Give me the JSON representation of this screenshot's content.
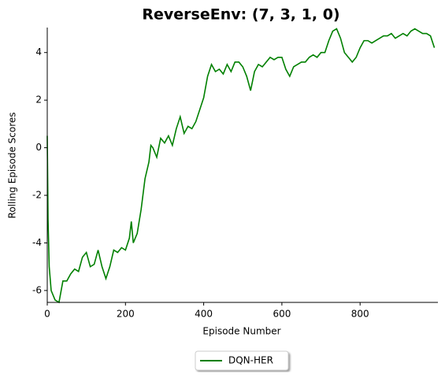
{
  "chart_data": {
    "type": "line",
    "title": "ReverseEnv: (7, 3, 1, 0)",
    "x_label": "Episode Number",
    "y_label": "Rolling Episode Scores",
    "x": [
      0,
      2,
      5,
      10,
      20,
      30,
      40,
      50,
      60,
      70,
      80,
      90,
      100,
      110,
      120,
      130,
      140,
      150,
      160,
      170,
      180,
      190,
      200,
      210,
      215,
      220,
      230,
      240,
      250,
      260,
      265,
      270,
      280,
      290,
      300,
      310,
      320,
      330,
      340,
      350,
      360,
      370,
      380,
      390,
      400,
      410,
      420,
      430,
      440,
      450,
      460,
      470,
      480,
      490,
      500,
      510,
      520,
      530,
      540,
      550,
      560,
      570,
      580,
      590,
      600,
      610,
      620,
      630,
      640,
      650,
      660,
      670,
      680,
      690,
      700,
      710,
      720,
      730,
      740,
      750,
      760,
      770,
      780,
      790,
      800,
      810,
      820,
      830,
      840,
      850,
      860,
      870,
      880,
      890,
      900,
      910,
      920,
      930,
      940,
      950,
      960,
      970,
      980,
      990
    ],
    "series": [
      {
        "name": "DQN-HER",
        "color": "#008000",
        "values": [
          0.5,
          -3,
          -5,
          -6,
          -6.4,
          -6.5,
          -5.6,
          -5.6,
          -5.3,
          -5.1,
          -5.2,
          -4.6,
          -4.4,
          -5.0,
          -4.9,
          -4.3,
          -5.0,
          -5.5,
          -5.0,
          -4.3,
          -4.4,
          -4.2,
          -4.3,
          -3.8,
          -3.1,
          -4.0,
          -3.6,
          -2.6,
          -1.3,
          -0.6,
          0.1,
          0.0,
          -0.4,
          0.4,
          0.2,
          0.5,
          0.1,
          0.8,
          1.3,
          0.6,
          0.9,
          0.8,
          1.1,
          1.6,
          2.1,
          3.0,
          3.5,
          3.2,
          3.3,
          3.1,
          3.5,
          3.2,
          3.6,
          3.6,
          3.4,
          3.0,
          2.4,
          3.2,
          3.5,
          3.4,
          3.6,
          3.8,
          3.7,
          3.8,
          3.8,
          3.3,
          3.0,
          3.4,
          3.5,
          3.6,
          3.6,
          3.8,
          3.9,
          3.8,
          4.0,
          4.0,
          4.5,
          4.9,
          5.0,
          4.6,
          4.0,
          3.8,
          3.6,
          3.8,
          4.2,
          4.5,
          4.5,
          4.4,
          4.5,
          4.6,
          4.7,
          4.7,
          4.8,
          4.6,
          4.7,
          4.8,
          4.7,
          4.9,
          5.0,
          4.9,
          4.8,
          4.8,
          4.7,
          4.2
        ]
      }
    ],
    "xlim": [
      0,
      999
    ],
    "ylim": [
      -6.5,
      5.05
    ],
    "xticks": [
      0,
      200,
      400,
      600,
      800
    ],
    "yticks": [
      -6,
      -4,
      -2,
      0,
      2,
      4
    ],
    "legend": "lower center"
  }
}
